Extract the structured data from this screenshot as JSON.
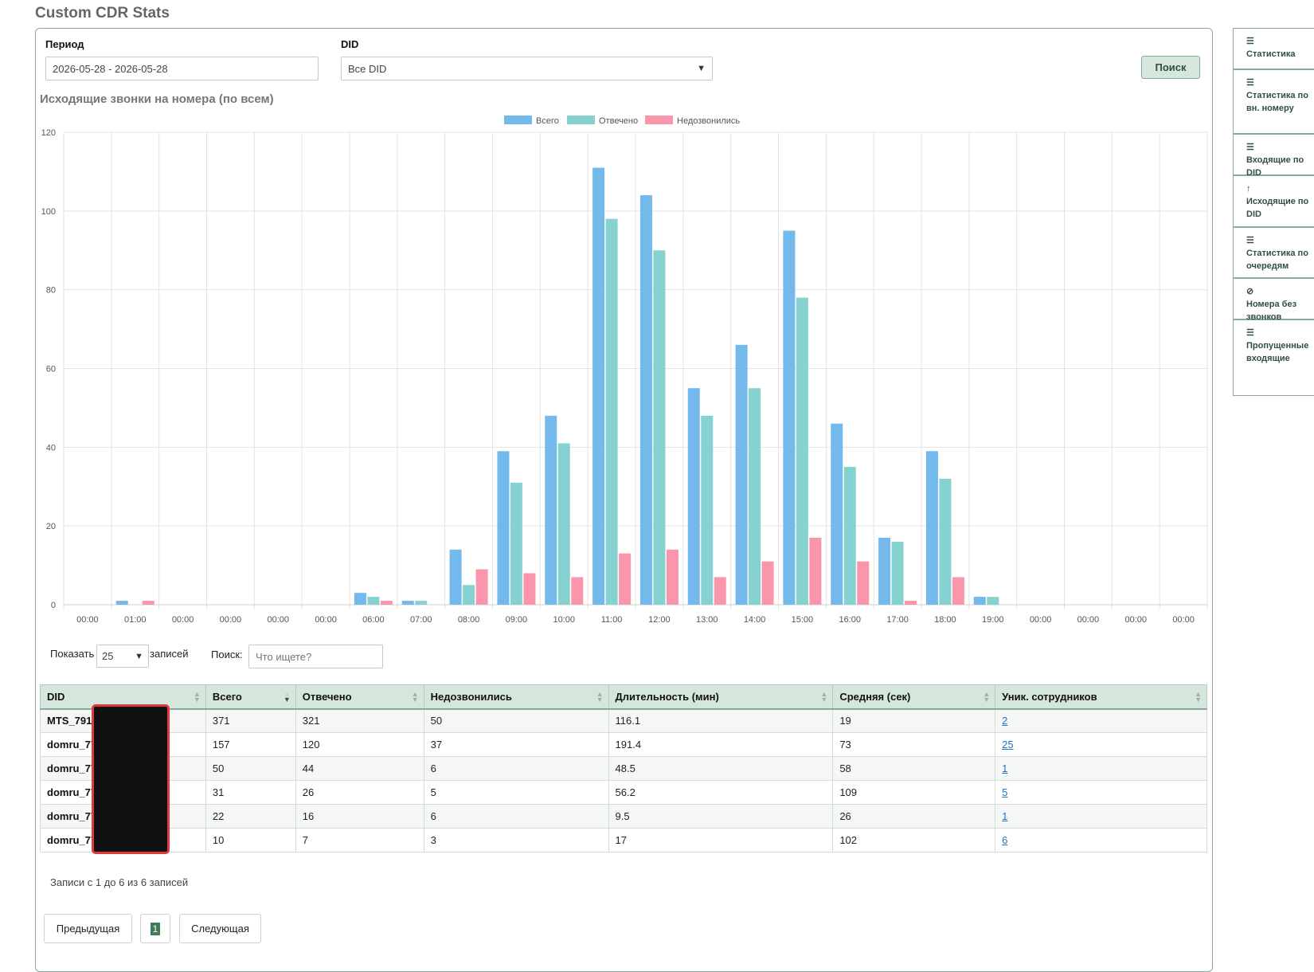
{
  "page": {
    "title": "Custom CDR Stats"
  },
  "filters": {
    "period_label": "Период",
    "period_value": "2026-05-28 - 2026-05-28",
    "did_label": "DID",
    "did_value": "Все DID",
    "search_button": "Поиск"
  },
  "chart_title": "Исходящие звонки на номера (по всем)",
  "chart_data": {
    "type": "bar",
    "title": "Исходящие звонки на номера (по всем)",
    "categories": [
      "00:00",
      "01:00",
      "00:00",
      "00:00",
      "00:00",
      "00:00",
      "06:00",
      "07:00",
      "08:00",
      "09:00",
      "10:00",
      "11:00",
      "12:00",
      "13:00",
      "14:00",
      "15:00",
      "16:00",
      "17:00",
      "18:00",
      "19:00",
      "00:00",
      "00:00",
      "00:00",
      "00:00"
    ],
    "series": [
      {
        "name": "Всего",
        "color": "#74b9ec",
        "values": [
          0,
          1,
          0,
          0,
          0,
          0,
          3,
          1,
          14,
          39,
          48,
          111,
          104,
          55,
          66,
          95,
          46,
          17,
          39,
          2,
          0,
          0,
          0,
          0
        ]
      },
      {
        "name": "Отвечено",
        "color": "#86d2d0",
        "values": [
          0,
          0,
          0,
          0,
          0,
          0,
          2,
          1,
          5,
          31,
          41,
          98,
          90,
          48,
          55,
          78,
          35,
          16,
          32,
          2,
          0,
          0,
          0,
          0
        ]
      },
      {
        "name": "Недозвонились",
        "color": "#f996ab",
        "values": [
          0,
          1,
          0,
          0,
          0,
          0,
          1,
          0,
          9,
          8,
          7,
          13,
          14,
          7,
          11,
          17,
          11,
          1,
          7,
          0,
          0,
          0,
          0,
          0
        ]
      }
    ],
    "ylim": [
      0,
      120
    ],
    "yticks": [
      0,
      20,
      40,
      60,
      80,
      100,
      120
    ],
    "legend_position": "top-center",
    "grid": true
  },
  "table_controls": {
    "show_label": "Показать",
    "page_size": "25",
    "records_label": "записей",
    "search_label": "Поиск:",
    "search_placeholder": "Что ищете?"
  },
  "table": {
    "headers": [
      "DID",
      "Всего",
      "Отвечено",
      "Недозвонились",
      "Длительность (мин)",
      "Средняя (сек)",
      "Уник. сотрудников"
    ],
    "rows": [
      [
        "MTS_7915",
        "371",
        "321",
        "50",
        "116.1",
        "19",
        "2"
      ],
      [
        "domru_77",
        "157",
        "120",
        "37",
        "191.4",
        "73",
        "25"
      ],
      [
        "domru_77",
        "50",
        "44",
        "6",
        "48.5",
        "58",
        "1"
      ],
      [
        "domru_77",
        "31",
        "26",
        "5",
        "56.2",
        "109",
        "5"
      ],
      [
        "domru_77",
        "22",
        "16",
        "6",
        "9.5",
        "26",
        "1"
      ],
      [
        "domru_77",
        "10",
        "7",
        "3",
        "17",
        "102",
        "6"
      ]
    ]
  },
  "table_info": "Записи с 1 до 6 из 6 записей",
  "pagination": {
    "prev": "Предыдущая",
    "current": "1",
    "next": "Следующая"
  },
  "sidebar": {
    "items": [
      {
        "icon": "list-icon",
        "label": "Статистика"
      },
      {
        "icon": "list-icon",
        "label": "Статистика по вн. номеру"
      },
      {
        "icon": "list-icon",
        "label": "Входящие по DID"
      },
      {
        "icon": "arrow-up-icon",
        "label": "Исходящие по DID"
      },
      {
        "icon": "list-icon",
        "label": "Статистика по очередям"
      },
      {
        "icon": "ban-icon",
        "label": "Номера без звонков"
      },
      {
        "icon": "list-icon",
        "label": "Пропущенные входящие"
      }
    ]
  }
}
